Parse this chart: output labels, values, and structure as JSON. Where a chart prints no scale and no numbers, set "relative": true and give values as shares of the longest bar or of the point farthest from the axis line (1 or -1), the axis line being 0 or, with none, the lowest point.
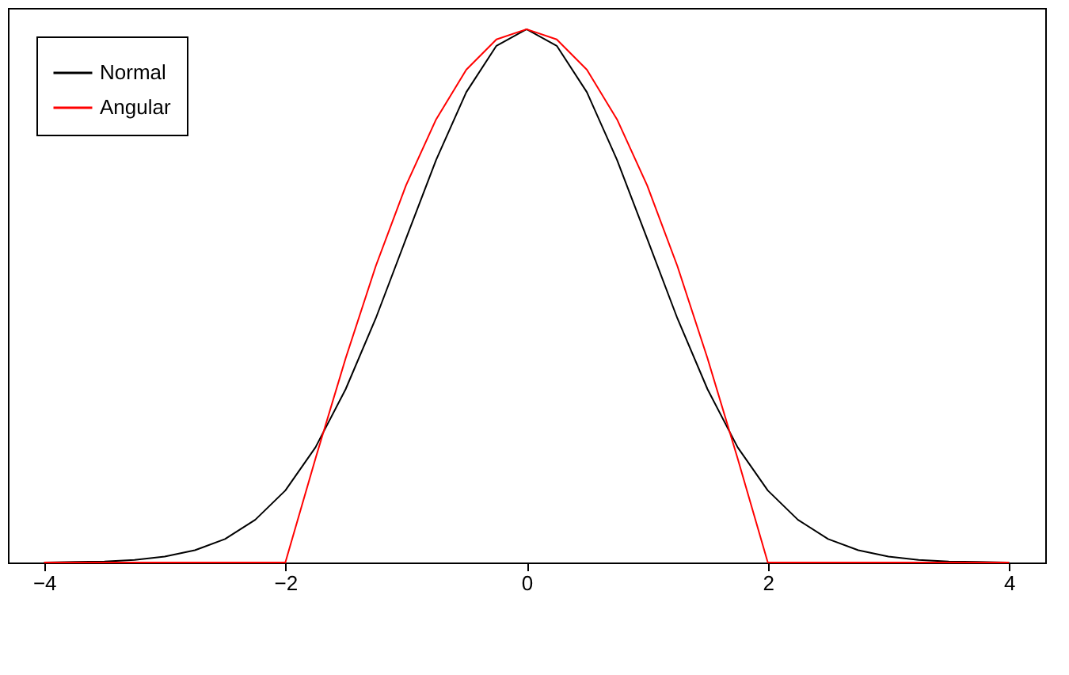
{
  "chart_data": {
    "type": "line",
    "relative": true,
    "x": [
      -4,
      -3.75,
      -3.5,
      -3.25,
      -3,
      -2.75,
      -2.5,
      -2.25,
      -2,
      -1.75,
      -1.5,
      -1.25,
      -1,
      -0.75,
      -0.5,
      -0.25,
      0,
      0.25,
      0.5,
      0.75,
      1,
      1.25,
      1.5,
      1.75,
      2,
      2.25,
      2.5,
      2.75,
      3,
      3.25,
      3.5,
      3.75,
      4
    ],
    "series": [
      {
        "name": "Normal",
        "color": "#000000",
        "values": [
          0,
          0.001,
          0.002,
          0.005,
          0.011,
          0.023,
          0.044,
          0.08,
          0.135,
          0.216,
          0.325,
          0.458,
          0.607,
          0.755,
          0.882,
          0.969,
          1,
          0.969,
          0.882,
          0.755,
          0.607,
          0.458,
          0.325,
          0.216,
          0.135,
          0.08,
          0.044,
          0.023,
          0.011,
          0.005,
          0.002,
          0.001,
          0
        ]
      },
      {
        "name": "Angular",
        "color": "#ff0000",
        "values": [
          0,
          0,
          0,
          0,
          0,
          0,
          0,
          0,
          0,
          0.195,
          0.383,
          0.556,
          0.707,
          0.831,
          0.924,
          0.981,
          1,
          0.981,
          0.924,
          0.831,
          0.707,
          0.556,
          0.383,
          0.195,
          0,
          0,
          0,
          0,
          0,
          0,
          0,
          0,
          0
        ]
      }
    ],
    "xlim": [
      -4.3,
      4.3
    ],
    "xticks": [
      -4,
      -2,
      0,
      2,
      4
    ],
    "grid": false,
    "legend": "top left",
    "marker": "none",
    "line_style": "solid"
  }
}
